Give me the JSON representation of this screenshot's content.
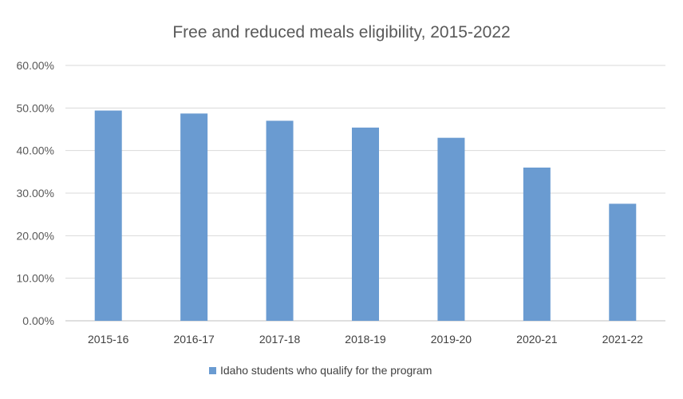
{
  "chart_data": {
    "type": "bar",
    "title": "Free and reduced  meals eligibility,  2015-2022",
    "categories": [
      "2015-16",
      "2016-17",
      "2017-18",
      "2018-19",
      "2019-20",
      "2020-21",
      "2021-22"
    ],
    "series": [
      {
        "name": "Idaho students who qualify for the program",
        "values": [
          49.4,
          48.7,
          47.0,
          45.4,
          43.0,
          36.0,
          27.5
        ],
        "color": "#6a9bd1"
      }
    ],
    "ylim": [
      0,
      60
    ],
    "yticks": [
      "0.00%",
      "10.00%",
      "20.00%",
      "30.00%",
      "40.00%",
      "50.00%",
      "60.00%"
    ],
    "grid": true,
    "legend_position": "bottom"
  }
}
